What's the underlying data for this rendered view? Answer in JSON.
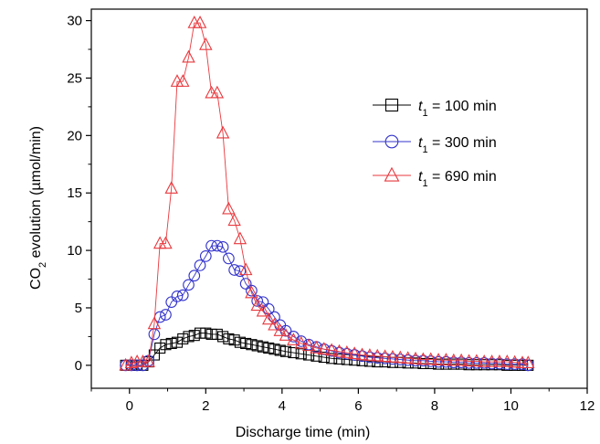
{
  "chart_data": {
    "type": "scatter",
    "title": "",
    "xlabel": "Discharge time (min)",
    "ylabel": {
      "prefix": "CO",
      "sub": "2",
      "suffix": " evolution (µmol/min)"
    },
    "xlim": [
      -1,
      12
    ],
    "ylim": [
      -2,
      31
    ],
    "xticks": [
      0,
      2,
      4,
      6,
      8,
      10,
      12
    ],
    "yticks": [
      0,
      5,
      10,
      15,
      20,
      25,
      30
    ],
    "grid": false,
    "legend": "top-right",
    "series": [
      {
        "name": {
          "var": "t",
          "sub": "1",
          "rest": " = 100 min"
        },
        "marker": "square",
        "color": "#000000",
        "x": [
          -0.1,
          0.05,
          0.2,
          0.35,
          0.5,
          0.65,
          0.8,
          0.95,
          1.1,
          1.25,
          1.4,
          1.55,
          1.7,
          1.85,
          2.0,
          2.15,
          2.3,
          2.45,
          2.6,
          2.75,
          2.9,
          3.05,
          3.2,
          3.35,
          3.5,
          3.65,
          3.8,
          3.95,
          4.1,
          4.3,
          4.5,
          4.7,
          4.9,
          5.1,
          5.3,
          5.5,
          5.7,
          5.9,
          6.1,
          6.3,
          6.5,
          6.7,
          6.9,
          7.1,
          7.3,
          7.5,
          7.7,
          7.9,
          8.1,
          8.3,
          8.5,
          8.7,
          8.9,
          9.1,
          9.3,
          9.5,
          9.7,
          9.9,
          10.1,
          10.3,
          10.45
        ],
        "y": [
          0,
          0,
          0,
          0,
          0.3,
          0.9,
          1.5,
          1.8,
          1.9,
          2.0,
          2.3,
          2.5,
          2.6,
          2.8,
          2.8,
          2.7,
          2.7,
          2.5,
          2.3,
          2.2,
          2.0,
          1.9,
          1.8,
          1.7,
          1.6,
          1.5,
          1.4,
          1.3,
          1.2,
          1.1,
          1.0,
          0.9,
          0.8,
          0.7,
          0.6,
          0.55,
          0.5,
          0.45,
          0.4,
          0.35,
          0.3,
          0.3,
          0.25,
          0.25,
          0.2,
          0.2,
          0.15,
          0.15,
          0.1,
          0.1,
          0.1,
          0.1,
          0.05,
          0.05,
          0.05,
          0.05,
          0.05,
          0,
          0,
          0,
          0
        ]
      },
      {
        "name": {
          "var": "t",
          "sub": "1",
          "rest": " = 300 min"
        },
        "marker": "circle",
        "color": "#3333cc",
        "x": [
          -0.1,
          0.05,
          0.2,
          0.35,
          0.5,
          0.65,
          0.8,
          0.95,
          1.1,
          1.25,
          1.4,
          1.55,
          1.7,
          1.85,
          2.0,
          2.15,
          2.3,
          2.45,
          2.6,
          2.75,
          2.9,
          3.05,
          3.2,
          3.35,
          3.5,
          3.65,
          3.8,
          3.95,
          4.1,
          4.3,
          4.5,
          4.7,
          4.9,
          5.1,
          5.3,
          5.5,
          5.7,
          5.9,
          6.1,
          6.3,
          6.5,
          6.7,
          6.9,
          7.1,
          7.3,
          7.5,
          7.7,
          7.9,
          8.1,
          8.3,
          8.5,
          8.7,
          8.9,
          9.1,
          9.3,
          9.5,
          9.7,
          9.9,
          10.1,
          10.3,
          10.45
        ],
        "y": [
          0,
          0,
          0,
          0,
          0.4,
          2.7,
          4.2,
          4.4,
          5.5,
          6.0,
          6.1,
          7.0,
          7.8,
          8.7,
          9.5,
          10.4,
          10.4,
          10.3,
          9.3,
          8.3,
          8.2,
          7.1,
          6.5,
          5.6,
          5.5,
          4.9,
          4.2,
          3.5,
          3.0,
          2.5,
          2.1,
          1.8,
          1.6,
          1.4,
          1.25,
          1.1,
          1.0,
          0.9,
          0.8,
          0.7,
          0.65,
          0.6,
          0.55,
          0.5,
          0.45,
          0.4,
          0.4,
          0.35,
          0.3,
          0.3,
          0.25,
          0.25,
          0.2,
          0.2,
          0.2,
          0.15,
          0.15,
          0.1,
          0.1,
          0.1,
          0
        ]
      },
      {
        "name": {
          "var": "t",
          "sub": "1",
          "rest": " = 690 min"
        },
        "marker": "triangle",
        "color": "#e8393e",
        "x": [
          -0.1,
          0.05,
          0.2,
          0.35,
          0.5,
          0.65,
          0.8,
          0.95,
          1.1,
          1.25,
          1.4,
          1.55,
          1.7,
          1.85,
          2.0,
          2.15,
          2.3,
          2.45,
          2.6,
          2.75,
          2.9,
          3.05,
          3.2,
          3.35,
          3.5,
          3.65,
          3.8,
          3.95,
          4.1,
          4.3,
          4.5,
          4.7,
          4.9,
          5.1,
          5.3,
          5.5,
          5.7,
          5.9,
          6.1,
          6.3,
          6.5,
          6.7,
          6.9,
          7.1,
          7.3,
          7.5,
          7.7,
          7.9,
          8.1,
          8.3,
          8.5,
          8.7,
          8.9,
          9.1,
          9.3,
          9.5,
          9.7,
          9.9,
          10.1,
          10.3,
          10.45
        ],
        "y": [
          0,
          0.2,
          0.3,
          0.3,
          0.3,
          3.6,
          10.6,
          10.6,
          15.4,
          24.7,
          24.7,
          26.8,
          29.8,
          29.8,
          27.9,
          23.7,
          23.7,
          20.2,
          13.6,
          12.6,
          11.0,
          8.3,
          6.3,
          5.2,
          4.7,
          4.0,
          3.5,
          3.0,
          2.6,
          2.2,
          1.9,
          1.7,
          1.5,
          1.4,
          1.3,
          1.2,
          1.1,
          1.0,
          0.9,
          0.85,
          0.8,
          0.75,
          0.7,
          0.65,
          0.6,
          0.55,
          0.5,
          0.5,
          0.45,
          0.45,
          0.4,
          0.4,
          0.35,
          0.35,
          0.3,
          0.3,
          0.3,
          0.3,
          0.25,
          0.2,
          0.2
        ]
      }
    ]
  }
}
